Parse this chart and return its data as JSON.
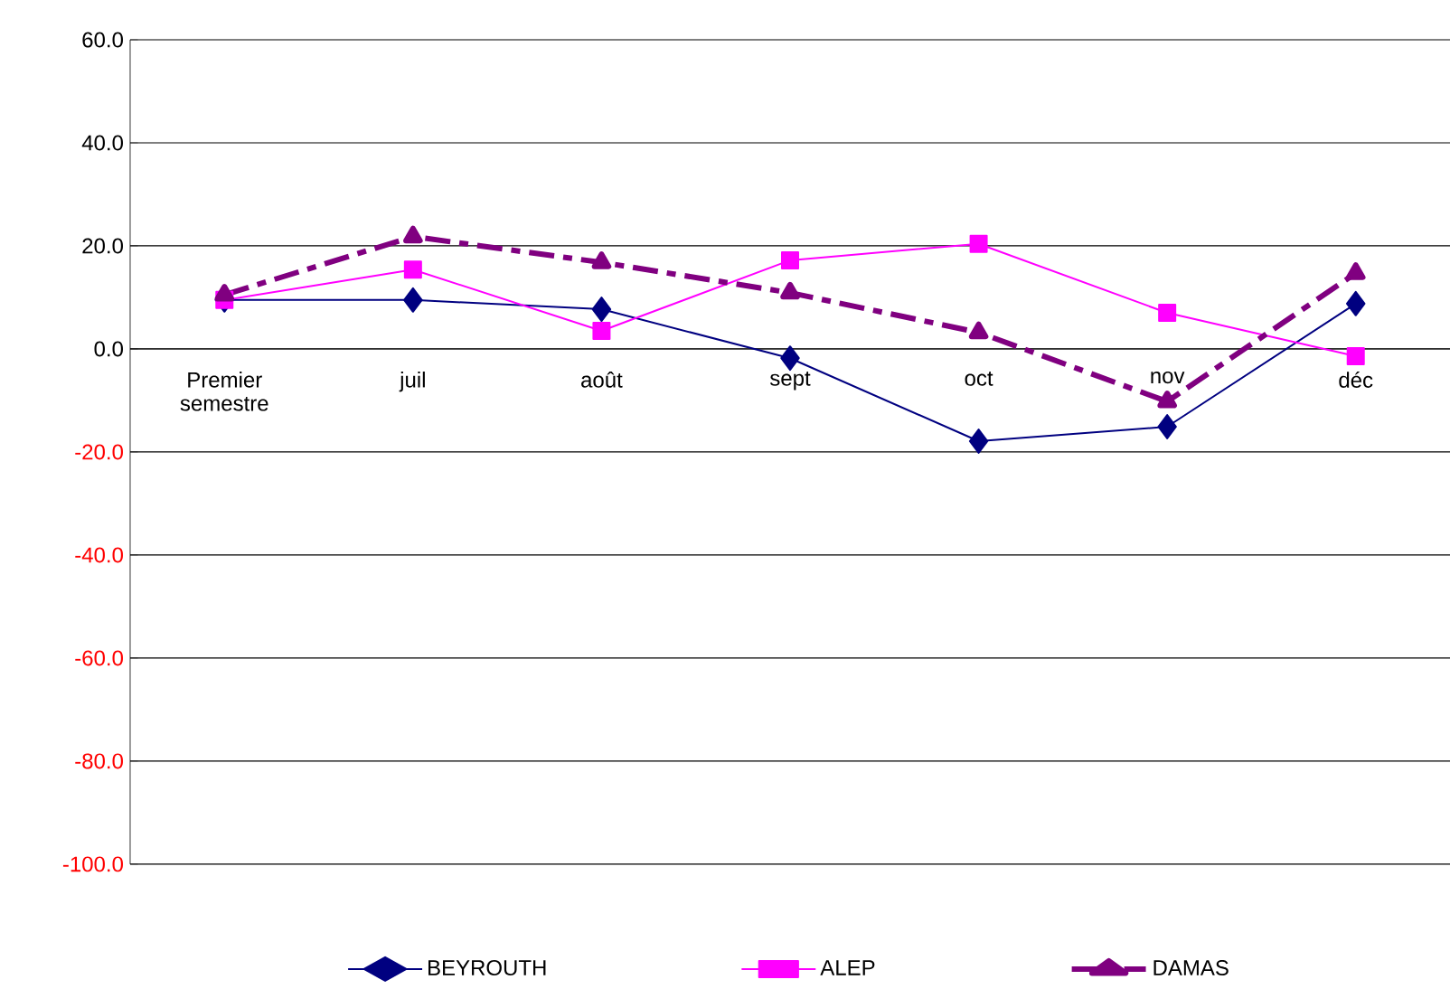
{
  "chart_data": {
    "type": "line",
    "categories": [
      "Premier semestre",
      "juil",
      "août",
      "sept",
      "oct",
      "nov",
      "déc"
    ],
    "series": [
      {
        "name": "BEYROUTH",
        "color": "#000080",
        "marker": "diamond",
        "line_style": "solid",
        "values": [
          9.5,
          9.5,
          7.7,
          -1.8,
          -17.9,
          -15.1,
          8.8
        ]
      },
      {
        "name": "ALEP",
        "color": "#ff00ff",
        "marker": "square",
        "line_style": "solid",
        "values": [
          9.5,
          15.4,
          3.5,
          17.2,
          20.4,
          7.0,
          -1.4
        ]
      },
      {
        "name": "DAMAS",
        "color": "#800080",
        "marker": "triangle",
        "line_style": "dashed",
        "values": [
          10.5,
          21.8,
          16.8,
          10.9,
          3.2,
          -10.2,
          14.7
        ]
      }
    ],
    "ylim": [
      -100,
      60
    ],
    "yticks": [
      {
        "value": -100,
        "label": "-100.0"
      },
      {
        "value": -80,
        "label": "-80.0"
      },
      {
        "value": -60,
        "label": "-60.0"
      },
      {
        "value": -40,
        "label": "-40.0"
      },
      {
        "value": -20,
        "label": "-20.0"
      },
      {
        "value": 0,
        "label": "0.0"
      },
      {
        "value": 20,
        "label": "20.0"
      },
      {
        "value": 40,
        "label": "40.0"
      },
      {
        "value": 60,
        "label": "60.0"
      }
    ],
    "grid": "y",
    "legend": "bottom"
  }
}
